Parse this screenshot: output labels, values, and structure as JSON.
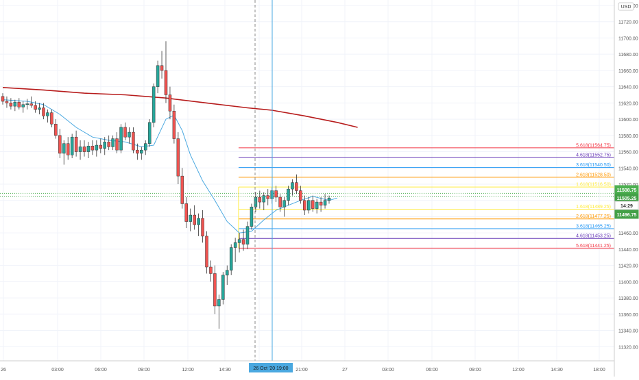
{
  "chart_data": {
    "type": "candlestick",
    "currency": "USD",
    "ylim": [
      11300,
      11760
    ],
    "y_ticks": [
      11320,
      11340,
      11360,
      11380,
      11400,
      11420,
      11440,
      11460,
      11480,
      11500,
      11520,
      11540,
      11560,
      11580,
      11600,
      11620,
      11640,
      11660,
      11680,
      11700,
      11720,
      11740
    ],
    "x_ticks": [
      "26",
      "03:00",
      "06:00",
      "09:00",
      "12:00",
      "14:30",
      "18:00",
      "21:00",
      "27",
      "03:00",
      "06:00",
      "09:00",
      "12:00",
      "14:30",
      "18:00"
    ],
    "crosshair_time_label": "26 Oct '20  19:00",
    "candles": [
      [
        11628,
        11632,
        11618,
        11622
      ],
      [
        11622,
        11628,
        11614,
        11620
      ],
      [
        11620,
        11626,
        11612,
        11616
      ],
      [
        11616,
        11624,
        11610,
        11621
      ],
      [
        11621,
        11626,
        11612,
        11615
      ],
      [
        11615,
        11622,
        11608,
        11618
      ],
      [
        11618,
        11625,
        11612,
        11619
      ],
      [
        11619,
        11628,
        11614,
        11617
      ],
      [
        11617,
        11622,
        11608,
        11612
      ],
      [
        11612,
        11620,
        11606,
        11614
      ],
      [
        11614,
        11620,
        11600,
        11604
      ],
      [
        11604,
        11612,
        11596,
        11608
      ],
      [
        11608,
        11612,
        11590,
        11594
      ],
      [
        11594,
        11600,
        11576,
        11580
      ],
      [
        11580,
        11588,
        11552,
        11558
      ],
      [
        11558,
        11574,
        11544,
        11570
      ],
      [
        11570,
        11578,
        11550,
        11556
      ],
      [
        11556,
        11582,
        11552,
        11578
      ],
      [
        11578,
        11586,
        11554,
        11560
      ],
      [
        11560,
        11574,
        11550,
        11566
      ],
      [
        11566,
        11574,
        11554,
        11560
      ],
      [
        11560,
        11572,
        11552,
        11567
      ],
      [
        11567,
        11574,
        11556,
        11562
      ],
      [
        11562,
        11574,
        11554,
        11568
      ],
      [
        11568,
        11576,
        11558,
        11564
      ],
      [
        11564,
        11578,
        11556,
        11572
      ],
      [
        11572,
        11580,
        11562,
        11566
      ],
      [
        11566,
        11580,
        11562,
        11576
      ],
      [
        11576,
        11584,
        11558,
        11562
      ],
      [
        11562,
        11594,
        11558,
        11590
      ],
      [
        11590,
        11596,
        11574,
        11578
      ],
      [
        11578,
        11590,
        11570,
        11584
      ],
      [
        11584,
        11590,
        11558,
        11562
      ],
      [
        11562,
        11570,
        11550,
        11558
      ],
      [
        11558,
        11566,
        11550,
        11562
      ],
      [
        11562,
        11574,
        11556,
        11570
      ],
      [
        11570,
        11600,
        11566,
        11596
      ],
      [
        11596,
        11644,
        11590,
        11640
      ],
      [
        11640,
        11672,
        11632,
        11666
      ],
      [
        11666,
        11684,
        11650,
        11660
      ],
      [
        11660,
        11696,
        11620,
        11630
      ],
      [
        11630,
        11640,
        11600,
        11610
      ],
      [
        11610,
        11618,
        11570,
        11576
      ],
      [
        11576,
        11584,
        11520,
        11530
      ],
      [
        11530,
        11540,
        11490,
        11496
      ],
      [
        11496,
        11504,
        11466,
        11474
      ],
      [
        11474,
        11490,
        11462,
        11482
      ],
      [
        11482,
        11494,
        11464,
        11470
      ],
      [
        11470,
        11484,
        11456,
        11478
      ],
      [
        11478,
        11488,
        11448,
        11456
      ],
      [
        11456,
        11462,
        11410,
        11418
      ],
      [
        11418,
        11426,
        11400,
        11410
      ],
      [
        11410,
        11420,
        11360,
        11370
      ],
      [
        11370,
        11384,
        11342,
        11378
      ],
      [
        11378,
        11412,
        11372,
        11408
      ],
      [
        11408,
        11420,
        11396,
        11414
      ],
      [
        11414,
        11446,
        11408,
        11442
      ],
      [
        11442,
        11454,
        11424,
        11448
      ],
      [
        11448,
        11460,
        11436,
        11452
      ],
      [
        11452,
        11464,
        11438,
        11446
      ],
      [
        11446,
        11474,
        11440,
        11468
      ],
      [
        11468,
        11496,
        11464,
        11492
      ],
      [
        11492,
        11510,
        11486,
        11504
      ],
      [
        11504,
        11512,
        11490,
        11498
      ],
      [
        11498,
        11510,
        11488,
        11506
      ],
      [
        11506,
        11514,
        11494,
        11502
      ],
      [
        11502,
        11516,
        11496,
        11512
      ],
      [
        11512,
        11518,
        11498,
        11504
      ],
      [
        11504,
        11508,
        11486,
        11492
      ],
      [
        11492,
        11504,
        11480,
        11500
      ],
      [
        11500,
        11518,
        11494,
        11514
      ],
      [
        11514,
        11526,
        11506,
        11522
      ],
      [
        11522,
        11532,
        11508,
        11512
      ],
      [
        11512,
        11518,
        11496,
        11500
      ],
      [
        11500,
        11506,
        11482,
        11488
      ],
      [
        11488,
        11504,
        11484,
        11500
      ],
      [
        11500,
        11506,
        11486,
        11490
      ],
      [
        11490,
        11502,
        11484,
        11498
      ],
      [
        11498,
        11504,
        11486,
        11494
      ],
      [
        11494,
        11508,
        11490,
        11500
      ],
      [
        11500,
        11506,
        11496,
        11503
      ]
    ],
    "fib_levels": [
      {
        "label": "5.618(11564.75)",
        "value": 11564.75,
        "color": "#f23645"
      },
      {
        "label": "4.618(11552.75)",
        "value": 11552.75,
        "color": "#673ab7"
      },
      {
        "label": "3.618(11540.50)",
        "value": 11540.5,
        "color": "#2196f3"
      },
      {
        "label": "2.618(11528.50)",
        "value": 11528.5,
        "color": "#ff9800"
      },
      {
        "label": "1.618(11516.50)",
        "value": 11516.5,
        "color": "#ffeb3b"
      },
      {
        "label": "1.618(11489.25)",
        "value": 11489.25,
        "color": "#ffeb3b"
      },
      {
        "label": "2.618(11477.25)",
        "value": 11477.25,
        "color": "#ff9800"
      },
      {
        "label": "3.618(11465.25)",
        "value": 11465.25,
        "color": "#2196f3"
      },
      {
        "label": "4.618(11453.25)",
        "value": 11453.25,
        "color": "#673ab7"
      },
      {
        "label": "5.618(11441.25)",
        "value": 11441.25,
        "color": "#f23645"
      }
    ],
    "price_labels": [
      {
        "text": "11508.75",
        "value": 11508.75,
        "color": "#4caf50"
      },
      {
        "text": "11505.25",
        "value": 11505.25,
        "color": "#43a047"
      },
      {
        "text": "14:29",
        "value": 11500.5,
        "color": "#ffffff"
      },
      {
        "text": "11496.75",
        "value": 11496.75,
        "color": "#43a047"
      }
    ],
    "dotted_levels": [
      11508.75,
      11505.25
    ],
    "sma_long": [
      [
        0,
        11639
      ],
      [
        10,
        11636
      ],
      [
        20,
        11632
      ],
      [
        30,
        11630
      ],
      [
        40,
        11626
      ],
      [
        50,
        11620
      ],
      [
        60,
        11614
      ],
      [
        66,
        11611
      ],
      [
        74,
        11604
      ],
      [
        82,
        11596
      ],
      [
        87,
        11590
      ]
    ],
    "ema_short": [
      [
        0,
        11624
      ],
      [
        6,
        11622
      ],
      [
        10,
        11618
      ],
      [
        14,
        11606
      ],
      [
        18,
        11590
      ],
      [
        22,
        11578
      ],
      [
        26,
        11574
      ],
      [
        30,
        11572
      ],
      [
        34,
        11566
      ],
      [
        37,
        11568
      ],
      [
        40,
        11600
      ],
      [
        42,
        11605
      ],
      [
        44,
        11586
      ],
      [
        46,
        11556
      ],
      [
        49,
        11524
      ],
      [
        52,
        11500
      ],
      [
        55,
        11474
      ],
      [
        58,
        11460
      ],
      [
        61,
        11462
      ],
      [
        64,
        11476
      ],
      [
        67,
        11488
      ],
      [
        70,
        11494
      ],
      [
        73,
        11500
      ],
      [
        76,
        11505
      ],
      [
        80,
        11500
      ],
      [
        82,
        11503
      ]
    ],
    "colors": {
      "up": "#26a69a",
      "down": "#ef5350",
      "border": "#333333",
      "sma": "#b71c1c",
      "ema": "#4aa8e0",
      "grid": "#f0f3fa",
      "axis": "#cccccc"
    }
  }
}
